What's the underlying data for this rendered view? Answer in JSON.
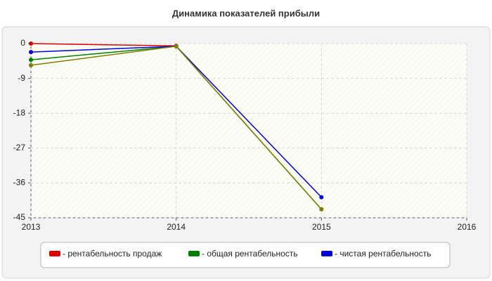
{
  "chart_data": {
    "type": "line",
    "title": "Динамика показателей прибыли",
    "x": [
      2013,
      2014,
      2015
    ],
    "xlim": [
      2013,
      2016
    ],
    "xticks": [
      2013,
      2014,
      2015,
      2016
    ],
    "ylim": [
      -45,
      0
    ],
    "yticks": [
      0,
      -9,
      -18,
      -27,
      -36,
      -45
    ],
    "grid": true,
    "legend": "bottom",
    "series": [
      {
        "name": "- рентабельность продаж",
        "color": "#e00000",
        "values": [
          0,
          -0.6,
          null
        ]
      },
      {
        "name": "- общая рентабельность",
        "color": "#008000",
        "values": [
          -4.2,
          -0.7,
          -42.8
        ]
      },
      {
        "name": "- чистая рентабельность",
        "color": "#0000e0",
        "values": [
          -2.2,
          -0.7,
          -39.7
        ]
      },
      {
        "color": "#808000",
        "values": [
          -5.6,
          -0.7,
          -42.8
        ]
      }
    ]
  }
}
